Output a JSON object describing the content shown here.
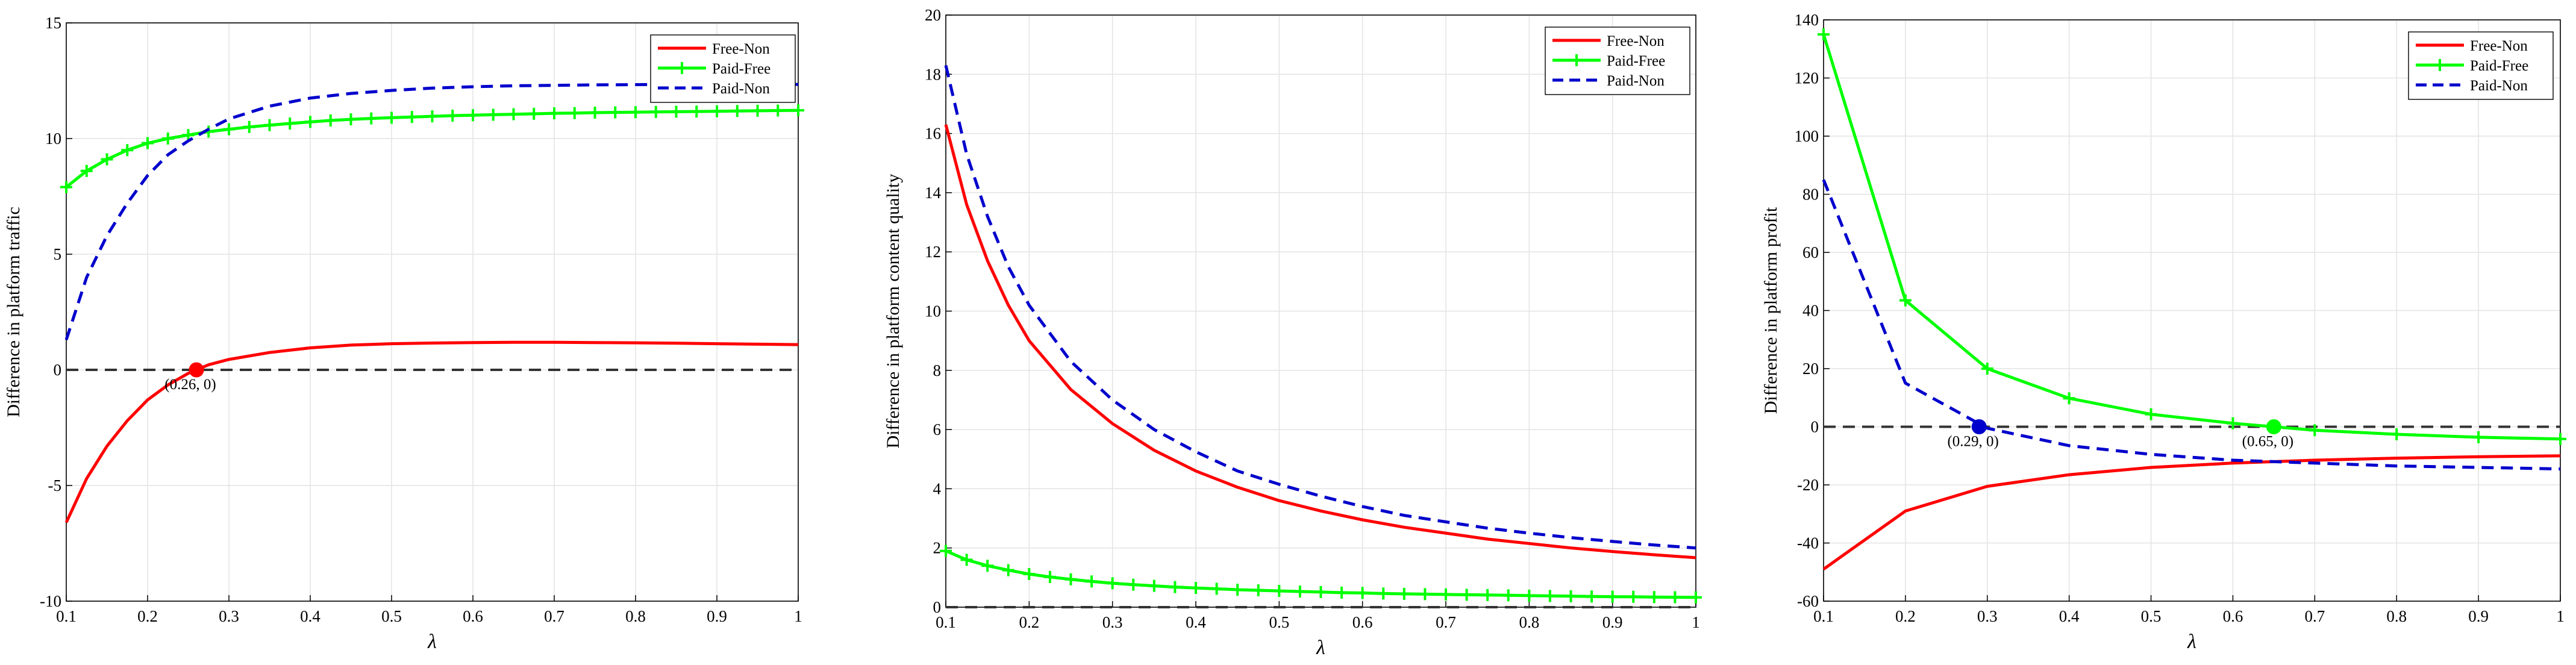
{
  "figure_colors": {
    "free_non": "#ff0000",
    "paid_free": "#00ff00",
    "paid_non": "#0000cc",
    "zero_line": "#333333",
    "grid": "#e3e3e3"
  },
  "chart_data": [
    {
      "type": "line",
      "ylabel": "Difference in platform traffic",
      "xlabel": "λ",
      "xlim": [
        0.1,
        1
      ],
      "ylim": [
        -10,
        15
      ],
      "xticks": [
        "0.1",
        "0.2",
        "0.3",
        "0.4",
        "0.5",
        "0.6",
        "0.7",
        "0.8",
        "0.9",
        "1"
      ],
      "yticks": [
        "-10",
        "-5",
        "0",
        "5",
        "10",
        "15"
      ],
      "grid": true,
      "legend_position": "top-right",
      "legend": [
        "Free-Non",
        "Paid-Free",
        "Paid-Non"
      ],
      "zero_line": 0,
      "annotations": [
        {
          "x": 0.26,
          "y": 0,
          "label": "(0.26, 0)",
          "color": "#ff0000"
        }
      ],
      "series": [
        {
          "name": "Free-Non",
          "style": "solid",
          "color": "#ff0000",
          "x": [
            0.1,
            0.125,
            0.15,
            0.175,
            0.2,
            0.225,
            0.25,
            0.275,
            0.3,
            0.35,
            0.4,
            0.45,
            0.5,
            0.55,
            0.6,
            0.65,
            0.7,
            0.75,
            0.8,
            0.85,
            0.9,
            0.95,
            1.0
          ],
          "y": [
            -6.6,
            -4.7,
            -3.3,
            -2.2,
            -1.3,
            -0.65,
            -0.15,
            0.22,
            0.45,
            0.75,
            0.95,
            1.07,
            1.13,
            1.16,
            1.18,
            1.19,
            1.19,
            1.18,
            1.17,
            1.15,
            1.13,
            1.11,
            1.09
          ]
        },
        {
          "name": "Paid-Free",
          "style": "solid-plus",
          "color": "#00ff00",
          "x": [
            0.1,
            0.125,
            0.15,
            0.175,
            0.2,
            0.225,
            0.25,
            0.275,
            0.3,
            0.325,
            0.35,
            0.375,
            0.4,
            0.425,
            0.45,
            0.475,
            0.5,
            0.525,
            0.55,
            0.575,
            0.6,
            0.625,
            0.65,
            0.675,
            0.7,
            0.725,
            0.75,
            0.775,
            0.8,
            0.825,
            0.85,
            0.875,
            0.9,
            0.925,
            0.95,
            0.975,
            1.0
          ],
          "y": [
            7.9,
            8.6,
            9.1,
            9.5,
            9.8,
            10.0,
            10.15,
            10.3,
            10.4,
            10.5,
            10.58,
            10.65,
            10.72,
            10.78,
            10.83,
            10.87,
            10.9,
            10.93,
            10.96,
            10.99,
            11.01,
            11.03,
            11.05,
            11.07,
            11.09,
            11.1,
            11.12,
            11.13,
            11.14,
            11.15,
            11.16,
            11.17,
            11.18,
            11.19,
            11.2,
            11.21,
            11.22
          ]
        },
        {
          "name": "Paid-Non",
          "style": "dashed",
          "color": "#0000cc",
          "x": [
            0.1,
            0.125,
            0.15,
            0.175,
            0.2,
            0.225,
            0.25,
            0.275,
            0.3,
            0.35,
            0.4,
            0.45,
            0.5,
            0.55,
            0.6,
            0.65,
            0.7,
            0.75,
            0.8,
            0.85,
            0.9,
            0.95,
            1.0
          ],
          "y": [
            1.3,
            4.0,
            5.8,
            7.2,
            8.4,
            9.3,
            9.9,
            10.4,
            10.85,
            11.4,
            11.75,
            11.95,
            12.08,
            12.18,
            12.24,
            12.28,
            12.3,
            12.32,
            12.33,
            12.34,
            12.34,
            12.34,
            12.34
          ]
        }
      ]
    },
    {
      "type": "line",
      "ylabel": "Difference in platform content quality",
      "xlabel": "λ",
      "xlim": [
        0.1,
        1
      ],
      "ylim": [
        0,
        20
      ],
      "xticks": [
        "0.1",
        "0.2",
        "0.3",
        "0.4",
        "0.5",
        "0.6",
        "0.7",
        "0.8",
        "0.9",
        "1"
      ],
      "yticks": [
        "0",
        "2",
        "4",
        "6",
        "8",
        "10",
        "12",
        "14",
        "16",
        "18",
        "20"
      ],
      "grid": true,
      "legend_position": "top-right",
      "legend": [
        "Free-Non",
        "Paid-Free",
        "Paid-Non"
      ],
      "zero_line": 0,
      "annotations": [],
      "series": [
        {
          "name": "Free-Non",
          "style": "solid",
          "color": "#ff0000",
          "x": [
            0.1,
            0.125,
            0.15,
            0.175,
            0.2,
            0.25,
            0.3,
            0.35,
            0.4,
            0.45,
            0.5,
            0.55,
            0.6,
            0.65,
            0.7,
            0.75,
            0.8,
            0.85,
            0.9,
            0.95,
            1.0
          ],
          "y": [
            16.3,
            13.6,
            11.7,
            10.2,
            9.0,
            7.35,
            6.2,
            5.3,
            4.6,
            4.05,
            3.6,
            3.25,
            2.95,
            2.7,
            2.5,
            2.3,
            2.15,
            2.0,
            1.88,
            1.77,
            1.67
          ]
        },
        {
          "name": "Paid-Free",
          "style": "solid-plus",
          "color": "#00ff00",
          "x": [
            0.1,
            0.125,
            0.15,
            0.175,
            0.2,
            0.225,
            0.25,
            0.275,
            0.3,
            0.325,
            0.35,
            0.375,
            0.4,
            0.425,
            0.45,
            0.475,
            0.5,
            0.525,
            0.55,
            0.575,
            0.6,
            0.625,
            0.65,
            0.675,
            0.7,
            0.725,
            0.75,
            0.775,
            0.8,
            0.825,
            0.85,
            0.875,
            0.9,
            0.925,
            0.95,
            0.975,
            1.0
          ],
          "y": [
            1.9,
            1.6,
            1.4,
            1.25,
            1.12,
            1.02,
            0.94,
            0.87,
            0.81,
            0.76,
            0.72,
            0.68,
            0.65,
            0.62,
            0.59,
            0.57,
            0.55,
            0.53,
            0.51,
            0.49,
            0.48,
            0.46,
            0.45,
            0.44,
            0.43,
            0.42,
            0.41,
            0.4,
            0.39,
            0.38,
            0.37,
            0.36,
            0.355,
            0.35,
            0.34,
            0.335,
            0.33
          ]
        },
        {
          "name": "Paid-Non",
          "style": "dashed",
          "color": "#0000cc",
          "x": [
            0.1,
            0.125,
            0.15,
            0.175,
            0.2,
            0.25,
            0.3,
            0.35,
            0.4,
            0.45,
            0.5,
            0.55,
            0.6,
            0.65,
            0.7,
            0.75,
            0.8,
            0.85,
            0.9,
            0.95,
            1.0
          ],
          "y": [
            18.3,
            15.3,
            13.2,
            11.5,
            10.2,
            8.3,
            7.0,
            6.0,
            5.25,
            4.6,
            4.15,
            3.75,
            3.4,
            3.1,
            2.88,
            2.67,
            2.5,
            2.35,
            2.22,
            2.1,
            2.0
          ]
        }
      ]
    },
    {
      "type": "line",
      "ylabel": "Difference in platform profit",
      "xlabel": "λ",
      "xlim": [
        0.1,
        1
      ],
      "ylim": [
        -60,
        140
      ],
      "xticks": [
        "0.1",
        "0.2",
        "0.3",
        "0.4",
        "0.5",
        "0.6",
        "0.7",
        "0.8",
        "0.9",
        "1"
      ],
      "yticks": [
        "-60",
        "-40",
        "-20",
        "0",
        "20",
        "40",
        "60",
        "80",
        "100",
        "120",
        "140"
      ],
      "grid": true,
      "legend_position": "top-right",
      "legend": [
        "Free-Non",
        "Paid-Free",
        "Paid-Non"
      ],
      "zero_line": 0,
      "annotations": [
        {
          "x": 0.29,
          "y": 0,
          "label": "(0.29, 0)",
          "color": "#0000cc"
        },
        {
          "x": 0.65,
          "y": 0,
          "label": "(0.65, 0)",
          "color": "#00ff00"
        }
      ],
      "series": [
        {
          "name": "Free-Non",
          "style": "solid",
          "color": "#ff0000",
          "x": [
            0.1,
            0.2,
            0.3,
            0.4,
            0.5,
            0.6,
            0.7,
            0.8,
            0.9,
            1.0
          ],
          "y": [
            -49,
            -29,
            -20.5,
            -16.5,
            -14,
            -12.5,
            -11.5,
            -10.8,
            -10.3,
            -10
          ]
        },
        {
          "name": "Paid-Free",
          "style": "solid-plus",
          "color": "#00ff00",
          "x": [
            0.1,
            0.2,
            0.3,
            0.4,
            0.5,
            0.6,
            0.7,
            0.8,
            0.9,
            1.0
          ],
          "y": [
            135,
            43.5,
            20,
            9.8,
            4.3,
            1.2,
            -1.2,
            -2.6,
            -3.6,
            -4.2
          ]
        },
        {
          "name": "Paid-Non",
          "style": "dashed",
          "color": "#0000cc",
          "x": [
            0.1,
            0.2,
            0.3,
            0.4,
            0.5,
            0.6,
            0.7,
            0.8,
            0.9,
            1.0
          ],
          "y": [
            85,
            15,
            -0.5,
            -6.5,
            -9.5,
            -11.5,
            -12.5,
            -13.5,
            -14,
            -14.5
          ]
        }
      ]
    }
  ]
}
